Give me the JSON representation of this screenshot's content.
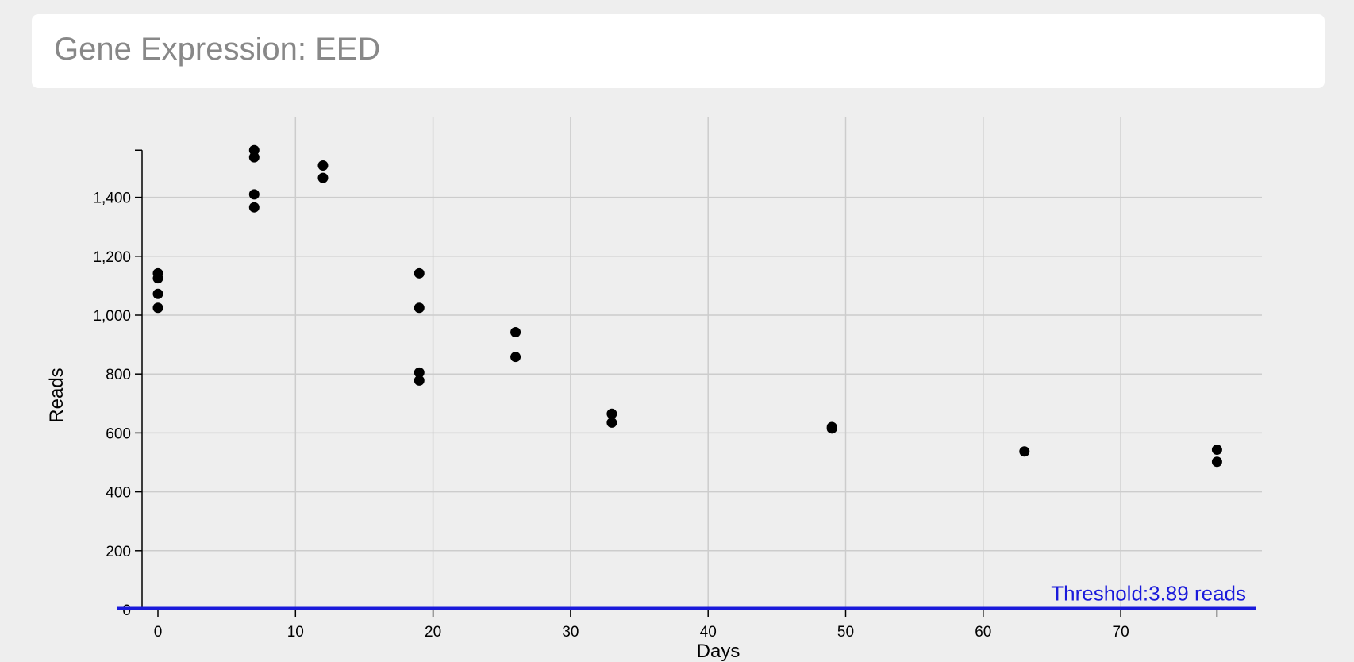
{
  "header": {
    "title": "Gene Expression: EED"
  },
  "chart_data": {
    "type": "scatter",
    "title": "Gene Expression: EED",
    "xlabel": "Days",
    "ylabel": "Reads",
    "xlim": [
      -1.5,
      80
    ],
    "ylim": [
      0,
      1560
    ],
    "x_ticks": [
      0,
      10,
      20,
      30,
      40,
      50,
      60,
      70
    ],
    "x_tick_labels": [
      "0",
      "10",
      "20",
      "30",
      "40",
      "50",
      "60",
      "70"
    ],
    "y_ticks": [
      0,
      200,
      400,
      600,
      800,
      1000,
      1200,
      1400
    ],
    "y_tick_labels": [
      "0",
      "200",
      "400",
      "600",
      "800",
      "1,000",
      "1,200",
      "1,400"
    ],
    "grid": true,
    "point_color": "#000000",
    "points": [
      {
        "x": 0,
        "y": 1142
      },
      {
        "x": 0,
        "y": 1125
      },
      {
        "x": 0,
        "y": 1072
      },
      {
        "x": 0,
        "y": 1025
      },
      {
        "x": 7,
        "y": 1560
      },
      {
        "x": 7,
        "y": 1536
      },
      {
        "x": 7,
        "y": 1410
      },
      {
        "x": 7,
        "y": 1366
      },
      {
        "x": 12,
        "y": 1508
      },
      {
        "x": 12,
        "y": 1466
      },
      {
        "x": 19,
        "y": 1142
      },
      {
        "x": 19,
        "y": 1025
      },
      {
        "x": 19,
        "y": 805
      },
      {
        "x": 19,
        "y": 778
      },
      {
        "x": 26,
        "y": 942
      },
      {
        "x": 26,
        "y": 858
      },
      {
        "x": 33,
        "y": 665
      },
      {
        "x": 33,
        "y": 635
      },
      {
        "x": 49,
        "y": 620
      },
      {
        "x": 49,
        "y": 615
      },
      {
        "x": 63,
        "y": 537
      },
      {
        "x": 77,
        "y": 543
      },
      {
        "x": 77,
        "y": 502
      }
    ],
    "threshold": {
      "value": 3.89,
      "label": "Threshold:3.89 reads",
      "color": "#1a1adb"
    }
  }
}
